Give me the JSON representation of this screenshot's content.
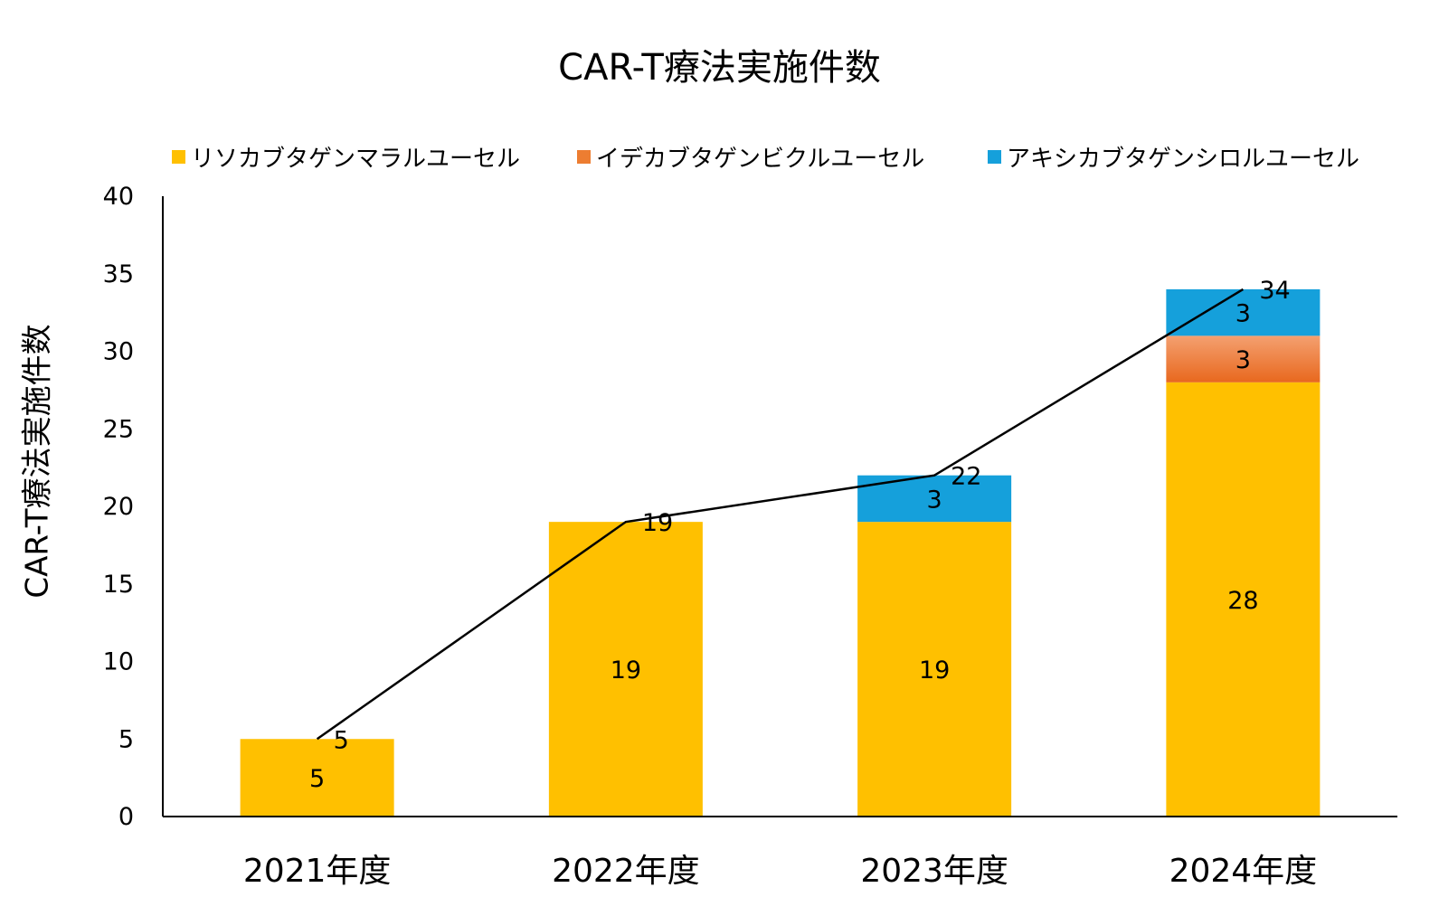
{
  "chart_data": {
    "type": "bar",
    "stacked": true,
    "title": "CAR-T療法実施件数",
    "ylabel": "CAR-T療法実施件数",
    "xlabel": "",
    "categories": [
      "2021年度",
      "2022年度",
      "2023年度",
      "2024年度"
    ],
    "ylim": [
      0,
      40
    ],
    "yticks": [
      0,
      5,
      10,
      15,
      20,
      25,
      30,
      35,
      40
    ],
    "grid": false,
    "legend_position": "top",
    "series": [
      {
        "name": "リソカブタゲンマラルユーセル",
        "values": [
          5,
          19,
          19,
          28
        ],
        "color": "#FFC000"
      },
      {
        "name": "イデカブタゲンビクルユーセル",
        "values": [
          0,
          0,
          0,
          3
        ],
        "color": "#ED7D31"
      },
      {
        "name": "アキシカブタゲンシロルユーセル",
        "values": [
          0,
          0,
          3,
          3
        ],
        "color": "#15A0DB"
      }
    ],
    "totals_line": {
      "values": [
        5,
        19,
        22,
        34
      ],
      "color": "#000000"
    }
  }
}
